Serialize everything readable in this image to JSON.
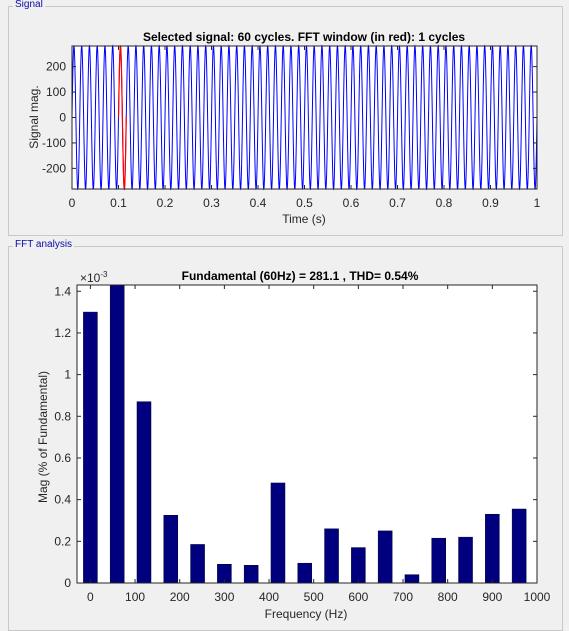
{
  "panels": {
    "signal_title": "Signal",
    "fft_title": "FFT analysis"
  },
  "colors": {
    "bar": "#00007f",
    "signal": "#0000ff",
    "window": "#ff0000",
    "panel_title": "#0a0aa8"
  },
  "chart_data": [
    {
      "type": "line",
      "title": "Selected signal: 60 cycles. FFT window (in red): 1 cycles",
      "xlabel": "Time (s)",
      "ylabel": "Signal mag.",
      "xlim": [
        0,
        1
      ],
      "ylim": [
        -281.1,
        281.1
      ],
      "xticks": [
        "0",
        "0.1",
        "0.2",
        "0.3",
        "0.4",
        "0.5",
        "0.6",
        "0.7",
        "0.8",
        "0.9",
        "1"
      ],
      "yticks": [
        "200",
        "100",
        "0",
        "-100",
        "-200"
      ],
      "series": [
        {
          "frequency_hz": 60,
          "amplitude": 281.1,
          "color": "#0000ff"
        },
        {
          "frequency_hz": 60,
          "amplitude": 281.1,
          "window": [
            0.1,
            0.1167
          ],
          "color": "#ff0000"
        }
      ]
    },
    {
      "type": "bar",
      "title": "Fundamental (60Hz) = 281.1 , THD= 0.54%",
      "xlabel": "Frequency (Hz)",
      "ylabel": "Mag (% of Fundamental)",
      "exponent_label": "×10",
      "exponent_power": "-3",
      "xlim": [
        -30,
        1000
      ],
      "ylim": [
        0,
        0.00143
      ],
      "xticks": [
        "0",
        "100",
        "200",
        "300",
        "400",
        "500",
        "600",
        "700",
        "800",
        "900",
        "1000"
      ],
      "yticks": [
        "1.4",
        "1.2",
        "1",
        "0.8",
        "0.6",
        "0.4",
        "0.2",
        "0"
      ],
      "x": [
        0,
        60,
        120,
        180,
        240,
        300,
        360,
        420,
        480,
        540,
        600,
        660,
        720,
        780,
        840,
        900,
        960
      ],
      "values": [
        0.0013,
        0.00143,
        0.00087,
        0.000325,
        0.000185,
        9e-05,
        8.5e-05,
        0.00048,
        9.5e-05,
        0.00026,
        0.00017,
        0.00025,
        4e-05,
        0.000215,
        0.00022,
        0.00033,
        0.000355
      ]
    }
  ]
}
